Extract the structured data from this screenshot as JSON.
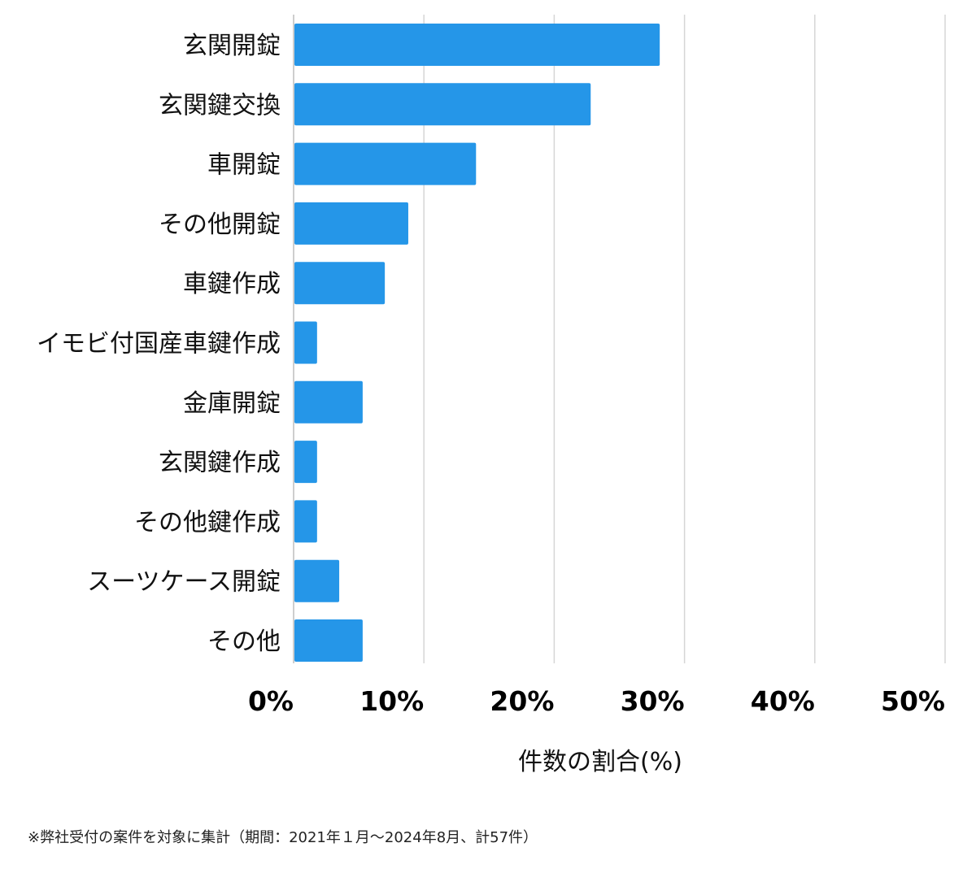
{
  "chart_data": {
    "type": "bar",
    "orientation": "horizontal",
    "categories": [
      "玄関開錠",
      "玄関鍵交換",
      "車開錠",
      "その他開錠",
      "車鍵作成",
      "イモビ付国産車鍵作成",
      "金庫開錠",
      "玄関鍵作成",
      "その他鍵作成",
      "スーツケース開錠",
      "その他"
    ],
    "values": [
      28.1,
      22.8,
      14.0,
      8.8,
      7.0,
      1.8,
      5.3,
      1.8,
      1.8,
      3.5,
      5.3
    ],
    "xlim": [
      0,
      50
    ],
    "xticks": [
      0,
      10,
      20,
      30,
      40,
      50
    ],
    "xtick_labels": [
      "0%",
      "10%",
      "20%",
      "30%",
      "40%",
      "50%"
    ],
    "xlabel": "件数の割合(%)",
    "ylabel": "",
    "title": "",
    "grid": "vertical",
    "bar_color": "#2596e8"
  },
  "footnote": "※弊社受付の案件を対象に集計（期間：2021年１月～2024年8月、計57件）"
}
